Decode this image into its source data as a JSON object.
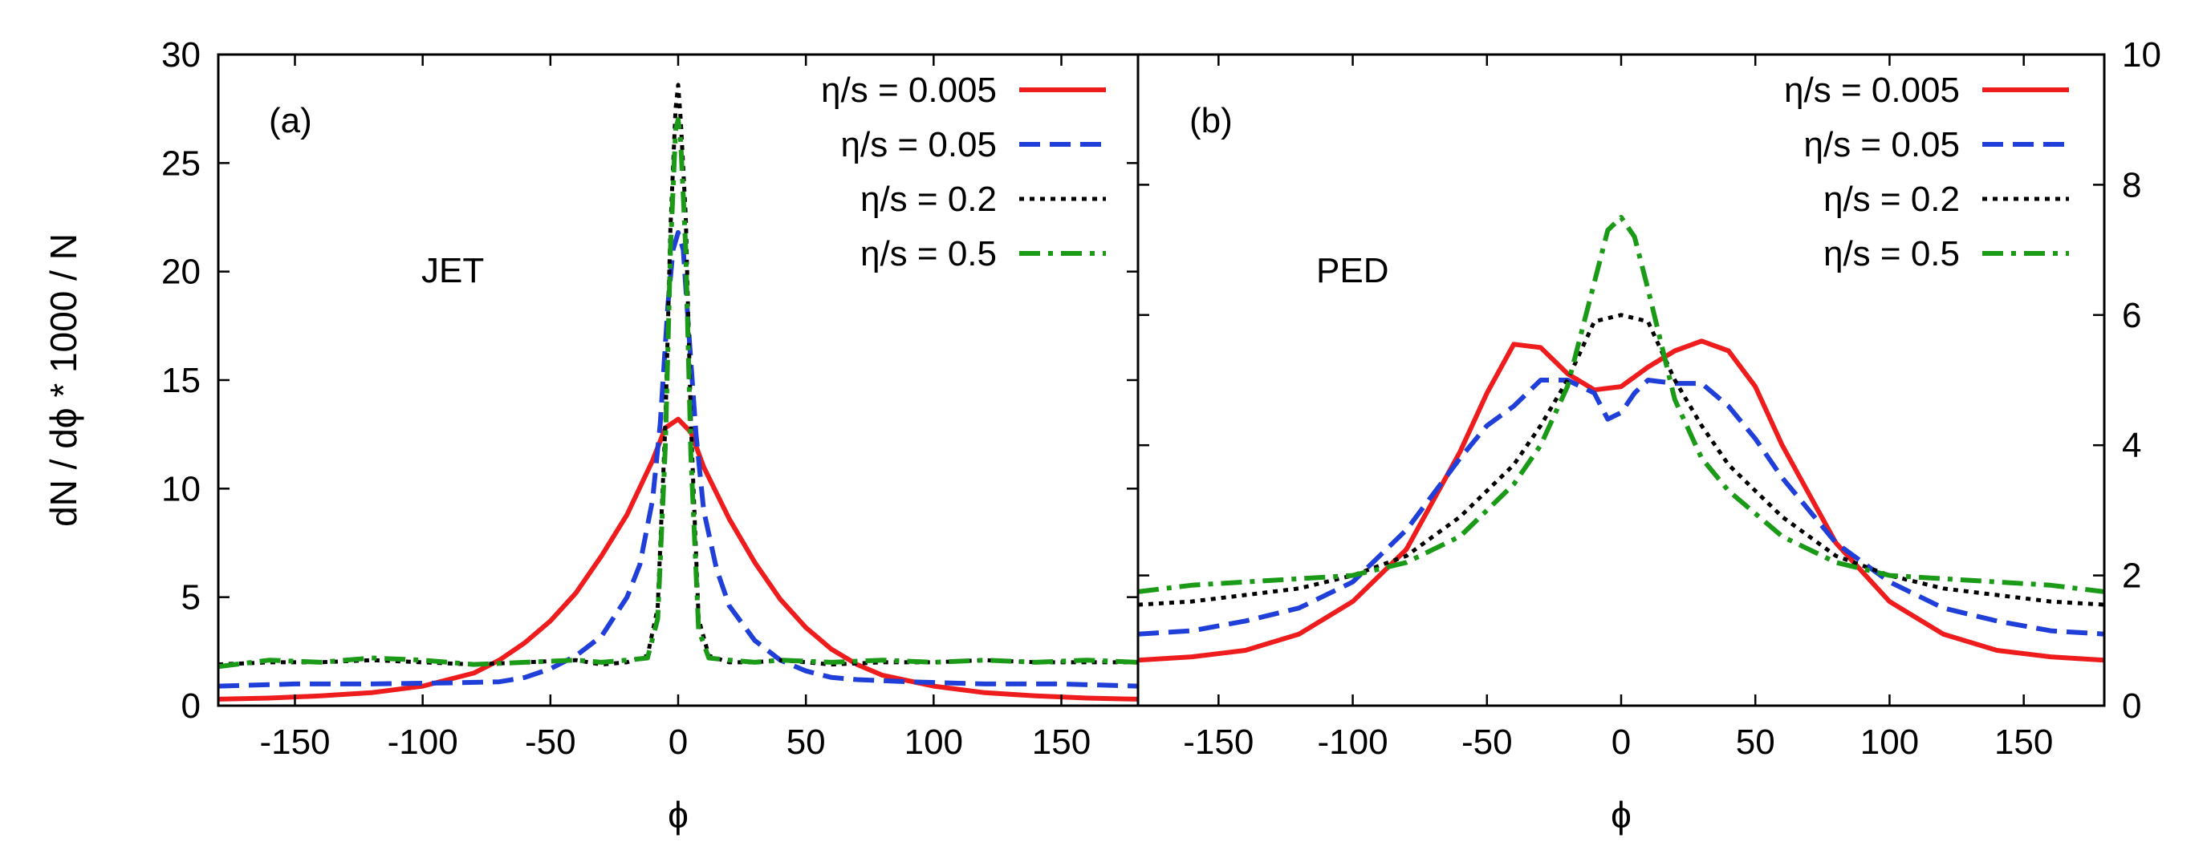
{
  "figure": {
    "ylabel": "dN / dϕ * 1000 / N",
    "xlabel": "ϕ"
  },
  "styles": {
    "red": "#ee1c1c",
    "blue": "#1f3fd8",
    "black": "#000000",
    "green": "#1a9a16"
  },
  "chart_data": [
    {
      "type": "line",
      "panel_tag": "(a)",
      "panel_name": "JET",
      "xlabel": "ϕ",
      "ylabel": "dN / dϕ * 1000 / N",
      "xlim": [
        -180,
        180
      ],
      "ylim": [
        0,
        30
      ],
      "x_ticks": [
        -150,
        -100,
        -50,
        0,
        50,
        100,
        150
      ],
      "y_ticks": [
        0,
        5,
        10,
        15,
        20,
        25,
        30
      ],
      "y_axis_side": "left",
      "legend": "top-right",
      "series": [
        {
          "name": "η/s = 0.005",
          "style": "solid",
          "color": "red",
          "x": [
            -180,
            -160,
            -140,
            -120,
            -100,
            -80,
            -70,
            -60,
            -50,
            -40,
            -30,
            -20,
            -10,
            -5,
            0,
            5,
            10,
            20,
            30,
            40,
            50,
            60,
            70,
            80,
            100,
            120,
            140,
            160,
            180
          ],
          "y": [
            0.3,
            0.35,
            0.45,
            0.6,
            0.9,
            1.5,
            2.1,
            2.9,
            3.9,
            5.2,
            6.9,
            8.8,
            11.3,
            12.8,
            13.2,
            12.6,
            11.0,
            8.6,
            6.6,
            4.9,
            3.6,
            2.6,
            1.9,
            1.4,
            0.9,
            0.6,
            0.45,
            0.35,
            0.3
          ]
        },
        {
          "name": "η/s = 0.05",
          "style": "dashed",
          "color": "blue",
          "x": [
            -180,
            -150,
            -120,
            -90,
            -70,
            -60,
            -50,
            -40,
            -30,
            -20,
            -15,
            -10,
            -7,
            -4,
            -2,
            0,
            2,
            4,
            7,
            10,
            15,
            20,
            30,
            40,
            50,
            60,
            70,
            90,
            120,
            150,
            180
          ],
          "y": [
            0.9,
            1.0,
            1.0,
            1.05,
            1.1,
            1.3,
            1.7,
            2.3,
            3.2,
            5.0,
            6.5,
            9.5,
            13.0,
            18.5,
            21.0,
            21.8,
            21.0,
            17.5,
            12.5,
            9.0,
            6.3,
            4.6,
            3.0,
            2.1,
            1.6,
            1.3,
            1.2,
            1.1,
            1.0,
            1.0,
            0.9
          ]
        },
        {
          "name": "η/s = 0.2",
          "style": "dotted",
          "color": "black",
          "x": [
            -180,
            -160,
            -140,
            -120,
            -100,
            -80,
            -60,
            -40,
            -30,
            -20,
            -12,
            -8,
            -5,
            -3,
            -1,
            0,
            1,
            3,
            5,
            8,
            12,
            20,
            30,
            40,
            60,
            80,
            100,
            120,
            140,
            160,
            180
          ],
          "y": [
            1.9,
            2.0,
            2.0,
            2.1,
            2.0,
            1.9,
            2.0,
            2.1,
            1.9,
            2.0,
            2.3,
            4.5,
            13.0,
            22.0,
            27.5,
            28.6,
            27.0,
            22.5,
            13.0,
            4.0,
            2.3,
            2.0,
            2.0,
            2.1,
            1.9,
            2.0,
            2.0,
            2.1,
            2.0,
            2.0,
            2.0
          ]
        },
        {
          "name": "η/s = 0.5",
          "style": "dashdot",
          "color": "green",
          "x": [
            -180,
            -160,
            -140,
            -120,
            -100,
            -80,
            -60,
            -40,
            -30,
            -20,
            -12,
            -8,
            -5,
            -3,
            -1,
            0,
            1,
            3,
            5,
            8,
            12,
            20,
            30,
            40,
            60,
            80,
            100,
            120,
            140,
            160,
            180
          ],
          "y": [
            1.8,
            2.1,
            2.0,
            2.2,
            2.1,
            1.9,
            2.0,
            2.1,
            2.0,
            2.1,
            2.2,
            4.0,
            12.0,
            21.0,
            26.5,
            27.0,
            26.0,
            21.0,
            11.5,
            3.5,
            2.2,
            2.1,
            2.0,
            2.1,
            2.0,
            2.1,
            2.0,
            2.1,
            2.0,
            2.1,
            2.0
          ]
        }
      ]
    },
    {
      "type": "line",
      "panel_tag": "(b)",
      "panel_name": "PED",
      "xlabel": "ϕ",
      "ylabel": "",
      "xlim": [
        -180,
        180
      ],
      "ylim": [
        0,
        10
      ],
      "x_ticks": [
        -150,
        -100,
        -50,
        0,
        50,
        100,
        150
      ],
      "y_ticks": [
        0,
        2,
        4,
        6,
        8,
        10
      ],
      "y_axis_side": "right",
      "legend": "top-right",
      "series": [
        {
          "name": "η/s = 0.005",
          "style": "solid",
          "color": "red",
          "x": [
            -180,
            -160,
            -140,
            -120,
            -100,
            -80,
            -60,
            -50,
            -40,
            -30,
            -20,
            -10,
            0,
            10,
            20,
            30,
            40,
            50,
            60,
            80,
            100,
            120,
            140,
            160,
            180
          ],
          "y": [
            0.7,
            0.75,
            0.85,
            1.1,
            1.6,
            2.4,
            3.9,
            4.8,
            5.55,
            5.5,
            5.1,
            4.85,
            4.9,
            5.2,
            5.45,
            5.6,
            5.45,
            4.9,
            4.0,
            2.5,
            1.6,
            1.1,
            0.85,
            0.75,
            0.7
          ]
        },
        {
          "name": "η/s = 0.05",
          "style": "dashed",
          "color": "blue",
          "x": [
            -180,
            -160,
            -140,
            -120,
            -100,
            -80,
            -60,
            -50,
            -40,
            -30,
            -20,
            -10,
            -5,
            0,
            5,
            10,
            20,
            30,
            40,
            50,
            60,
            80,
            100,
            120,
            140,
            160,
            180
          ],
          "y": [
            1.1,
            1.15,
            1.3,
            1.5,
            1.9,
            2.7,
            3.8,
            4.3,
            4.6,
            5.0,
            5.0,
            4.8,
            4.4,
            4.5,
            4.8,
            5.0,
            4.95,
            4.95,
            4.6,
            4.1,
            3.5,
            2.5,
            1.9,
            1.5,
            1.3,
            1.15,
            1.1
          ]
        },
        {
          "name": "η/s = 0.2",
          "style": "dotted",
          "color": "black",
          "x": [
            -180,
            -160,
            -140,
            -120,
            -100,
            -80,
            -60,
            -40,
            -30,
            -20,
            -10,
            0,
            10,
            20,
            30,
            40,
            60,
            80,
            100,
            120,
            140,
            160,
            180
          ],
          "y": [
            1.55,
            1.6,
            1.7,
            1.8,
            2.0,
            2.3,
            2.9,
            3.7,
            4.3,
            5.0,
            5.9,
            6.0,
            5.9,
            5.0,
            4.3,
            3.7,
            2.9,
            2.3,
            2.0,
            1.8,
            1.7,
            1.6,
            1.55
          ]
        },
        {
          "name": "η/s = 0.5",
          "style": "dashdot",
          "color": "green",
          "x": [
            -180,
            -160,
            -140,
            -120,
            -100,
            -80,
            -60,
            -40,
            -30,
            -20,
            -10,
            -5,
            0,
            5,
            10,
            20,
            30,
            40,
            60,
            80,
            100,
            120,
            140,
            160,
            180
          ],
          "y": [
            1.75,
            1.85,
            1.9,
            1.95,
            2.0,
            2.2,
            2.6,
            3.4,
            4.0,
            4.9,
            6.5,
            7.3,
            7.5,
            7.2,
            6.4,
            4.7,
            3.8,
            3.3,
            2.6,
            2.2,
            2.0,
            1.95,
            1.9,
            1.85,
            1.75
          ]
        }
      ]
    }
  ]
}
